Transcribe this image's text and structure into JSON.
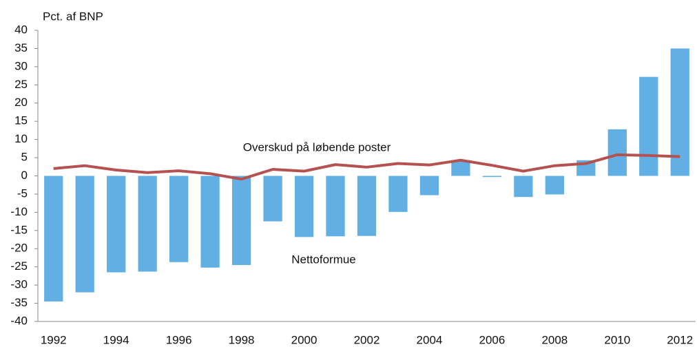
{
  "chart_data": {
    "type": "bar",
    "y_axis_label": "Pct. af BNP",
    "categories": [
      "1992",
      null,
      "1994",
      null,
      "1996",
      null,
      "1998",
      null,
      "2000",
      null,
      "2002",
      null,
      "2004",
      null,
      "2006",
      null,
      "2008",
      null,
      "2010",
      null,
      "2012"
    ],
    "series": [
      {
        "name": "Nettoformue",
        "type": "bar",
        "color": "#62b0e3",
        "values": [
          -34.5,
          -32,
          -26.5,
          -26.3,
          -23.7,
          -25.2,
          -24.5,
          -12.5,
          -16.8,
          -16.6,
          -16.5,
          -9.9,
          -5.3,
          4.3,
          -0.3,
          -5.8,
          -5.1,
          4.3,
          12.8,
          27.2,
          35
        ]
      },
      {
        "name": "Overskud på løbende poster",
        "type": "line",
        "color": "#b5514f",
        "values": [
          2.0,
          2.8,
          1.6,
          0.9,
          1.4,
          0.6,
          -0.9,
          1.8,
          1.3,
          3.1,
          2.4,
          3.4,
          3.0,
          4.3,
          2.9,
          1.3,
          2.8,
          3.4,
          5.8,
          5.6,
          5.3
        ]
      }
    ],
    "ylim": [
      -40,
      40
    ],
    "yticks": [
      -40,
      -35,
      -30,
      -25,
      -20,
      -15,
      -10,
      -5,
      0,
      5,
      10,
      15,
      20,
      25,
      30,
      35,
      40
    ],
    "grid": false
  }
}
